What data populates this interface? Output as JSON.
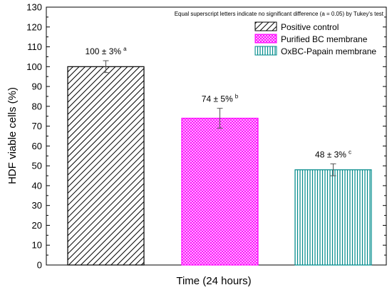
{
  "chart_data": {
    "type": "bar",
    "ylabel": "HDF viable cells (%)",
    "xlabel": "Time (24 hours)",
    "ylim": [
      0,
      130
    ],
    "yticks": [
      0,
      10,
      20,
      30,
      40,
      50,
      60,
      70,
      80,
      90,
      100,
      110,
      120,
      130
    ],
    "annotation": "Equal superscript letters indicate no significant difference (a = 0.05) by Tukey's test",
    "legend_position": "top-right",
    "series": [
      {
        "name": "Positive control",
        "value": 100,
        "error": 3,
        "label_main": "100 ± 3%",
        "label_sup": "a",
        "color": "#000000",
        "pattern": "diagonal-hatch"
      },
      {
        "name": "Purified BC membrane",
        "value": 74,
        "error": 5,
        "label_main": "74 ± 5%",
        "label_sup": "b",
        "color": "#ff00ff",
        "pattern": "crosshatch"
      },
      {
        "name": "OxBC-Papain membrane",
        "value": 48,
        "error": 3,
        "label_main": "48 ± 3%",
        "label_sup": "c",
        "color": "#008b8b",
        "pattern": "vertical-lines"
      }
    ]
  }
}
